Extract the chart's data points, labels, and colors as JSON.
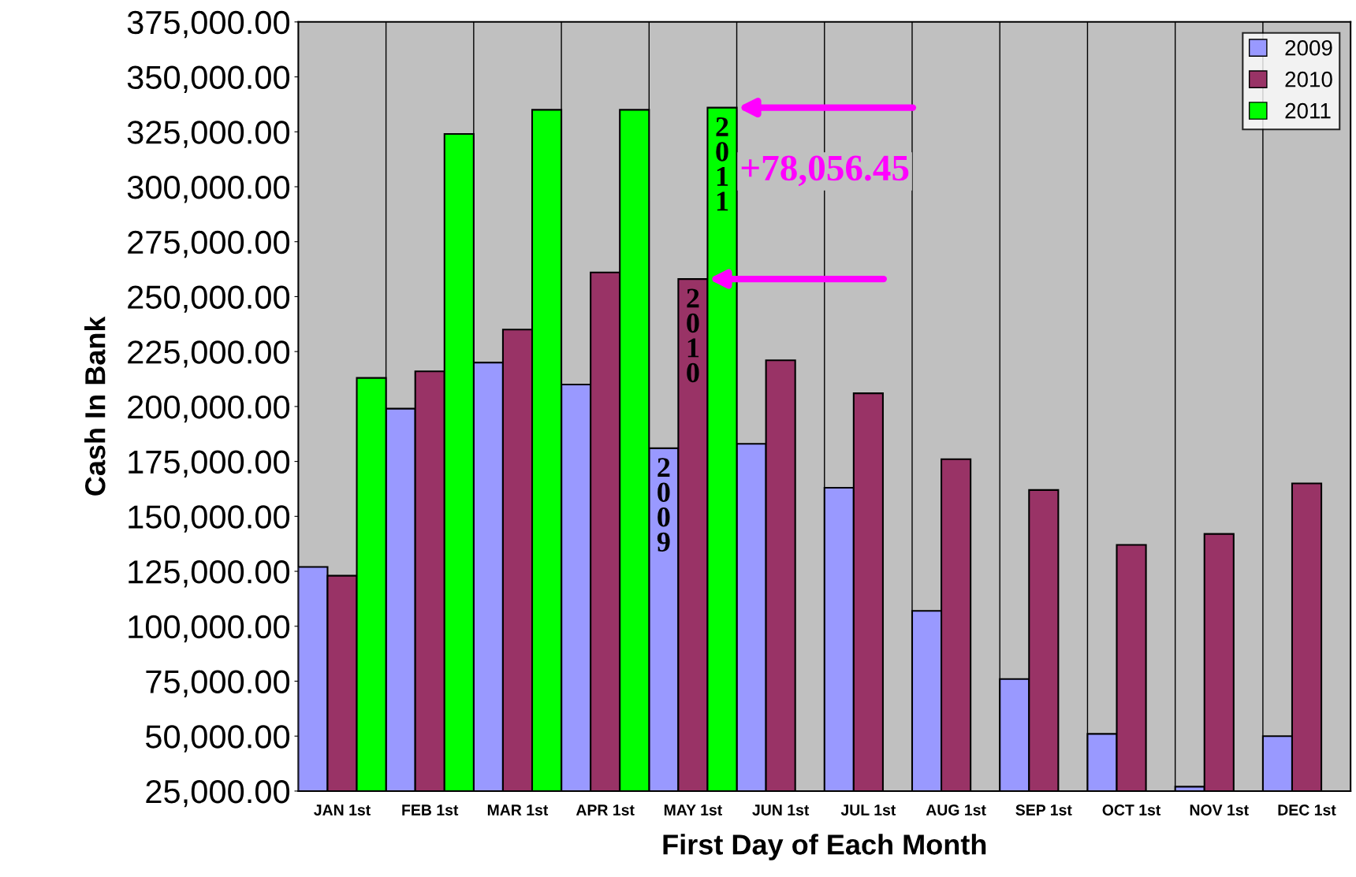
{
  "chart_data": {
    "type": "bar",
    "xlabel": "First Day of Each Month",
    "ylabel": "Cash In Bank",
    "categories": [
      "JAN 1st",
      "FEB 1st",
      "MAR 1st",
      "APR 1st",
      "MAY 1st",
      "JUN 1st",
      "JUL 1st",
      "AUG 1st",
      "SEP 1st",
      "OCT 1st",
      "NOV 1st",
      "DEC 1st"
    ],
    "series": [
      {
        "name": "2009",
        "color": "#9999ff",
        "values": [
          127000,
          199000,
          220000,
          210000,
          181000,
          183000,
          163000,
          107000,
          76000,
          51000,
          27000,
          50000
        ]
      },
      {
        "name": "2010",
        "color": "#993366",
        "values": [
          123000,
          216000,
          235000,
          261000,
          258000,
          221000,
          206000,
          176000,
          162000,
          137000,
          142000,
          165000
        ]
      },
      {
        "name": "2011",
        "color": "#00ff00",
        "values": [
          213000,
          324000,
          335000,
          335000,
          336000,
          null,
          null,
          null,
          null,
          null,
          null,
          null
        ]
      }
    ],
    "ylim": [
      25000,
      375000
    ],
    "yticks": [
      {
        "value": 25000,
        "label": "25,000.00"
      },
      {
        "value": 50000,
        "label": "50,000.00"
      },
      {
        "value": 75000,
        "label": "75,000.00"
      },
      {
        "value": 100000,
        "label": "100,000.00"
      },
      {
        "value": 125000,
        "label": "125,000.00"
      },
      {
        "value": 150000,
        "label": "150,000.00"
      },
      {
        "value": 175000,
        "label": "175,000.00"
      },
      {
        "value": 200000,
        "label": "200,000.00"
      },
      {
        "value": 225000,
        "label": "225,000.00"
      },
      {
        "value": 250000,
        "label": "250,000.00"
      },
      {
        "value": 275000,
        "label": "275,000.00"
      },
      {
        "value": 300000,
        "label": "300,000.00"
      },
      {
        "value": 325000,
        "label": "325,000.00"
      },
      {
        "value": 350000,
        "label": "350,000.00"
      },
      {
        "value": 375000,
        "label": "375,000.00"
      }
    ],
    "grid": "x",
    "legend": "top right",
    "annotations": [
      "2009",
      "2010",
      "2011",
      "+78,056.45"
    ]
  }
}
